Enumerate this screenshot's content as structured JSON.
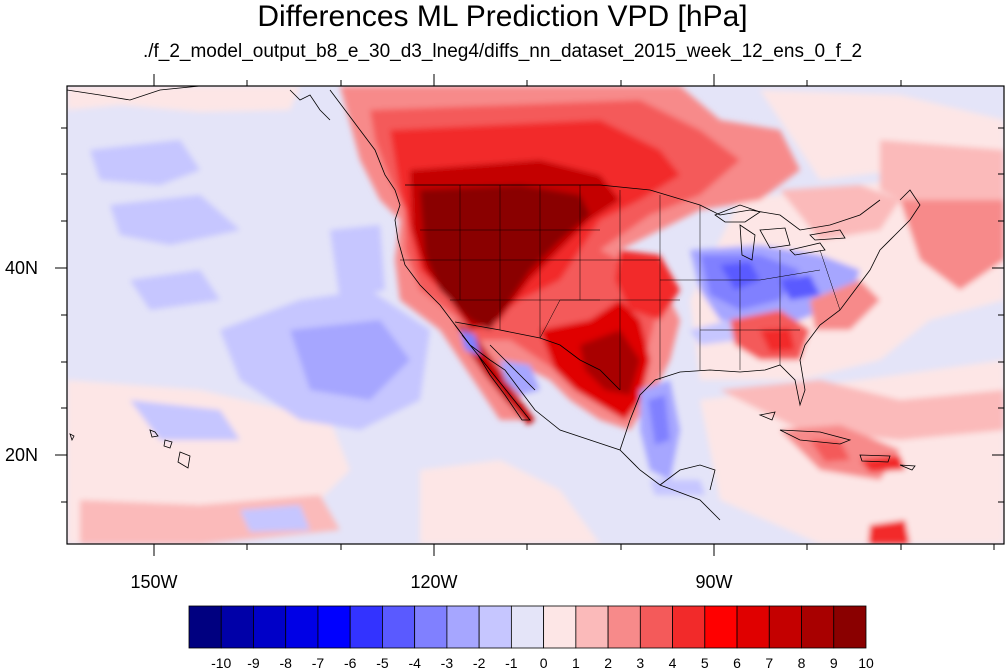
{
  "title": "Differences ML Prediction VPD [hPa]",
  "subtitle": "./f_2_model_output_b8_e_30_d3_lneg4/diffs_nn_dataset_2015_week_12_ens_0_f_2",
  "map": {
    "lon_ticks": [
      {
        "label": "150W"
      },
      {
        "label": "120W"
      },
      {
        "label": "90W"
      }
    ],
    "lat_ticks": [
      {
        "label": "40N"
      },
      {
        "label": "20N"
      }
    ]
  },
  "colorbar": {
    "labels": [
      "-10",
      "-9",
      "-8",
      "-7",
      "-6",
      "-5",
      "-4",
      "-3",
      "-2",
      "-1",
      "0",
      "1",
      "2",
      "3",
      "4",
      "5",
      "6",
      "7",
      "8",
      "9",
      "10"
    ],
    "colors": [
      "#000080",
      "#0000a8",
      "#0000c8",
      "#0000e6",
      "#0000ff",
      "#3333ff",
      "#5a5aff",
      "#8080ff",
      "#a6a6ff",
      "#c6c6ff",
      "#e4e4f8",
      "#fde6e6",
      "#fbbaba",
      "#f78a8a",
      "#f45a5a",
      "#f22a2a",
      "#ff0000",
      "#e00000",
      "#c40000",
      "#a80000",
      "#8a0000"
    ]
  }
}
